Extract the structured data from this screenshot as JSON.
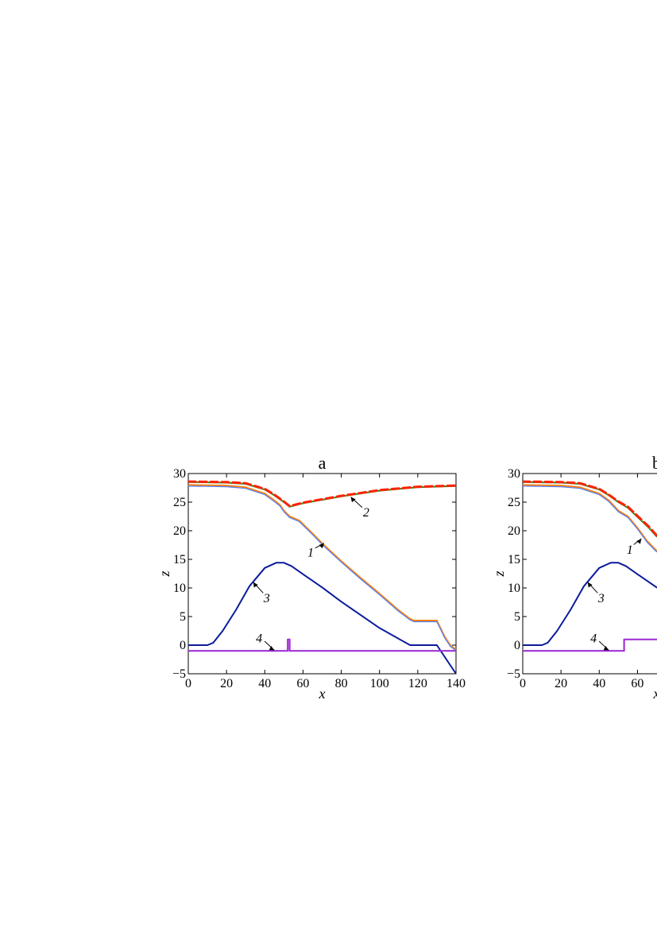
{
  "chart_data": [
    {
      "type": "line",
      "title": "a",
      "xlabel": "x",
      "ylabel": "z",
      "xlim": [
        0,
        140
      ],
      "ylim": [
        -5,
        30
      ],
      "xticks": [
        0,
        20,
        40,
        60,
        80,
        100,
        120,
        140
      ],
      "yticks": [
        -5,
        0,
        5,
        10,
        15,
        20,
        25,
        30
      ],
      "grid": false,
      "colors": {
        "orange": "#ff7f0e",
        "blue_thin": "#4f7fff",
        "green": "#2e8b22",
        "red": "#ff2200",
        "navy": "#0b1b9c",
        "purple": "#a033d6"
      },
      "series": [
        {
          "style": "solid",
          "color": "#2e8b22",
          "x": [
            0,
            20,
            30,
            40,
            45,
            50,
            53,
            60,
            80,
            100,
            120,
            140
          ],
          "y": [
            28.5,
            28.4,
            28.2,
            27.2,
            26.2,
            25.0,
            24.2,
            24.8,
            26.0,
            27.0,
            27.6,
            27.8
          ]
        },
        {
          "style": "dashed",
          "color": "#ff2200",
          "x": [
            0,
            20,
            30,
            40,
            45,
            50,
            53,
            60,
            80,
            100,
            120,
            140
          ],
          "y": [
            28.6,
            28.5,
            28.3,
            27.3,
            26.3,
            25.1,
            24.3,
            24.9,
            26.1,
            27.1,
            27.7,
            27.9
          ]
        },
        {
          "style": "solid",
          "color": "#ff7f0e",
          "x": [
            0,
            20,
            30,
            40,
            45,
            48,
            50,
            53,
            58,
            65,
            70,
            80,
            90,
            100,
            110,
            116,
            118,
            122,
            130,
            134,
            137,
            140
          ],
          "y": [
            28.0,
            27.9,
            27.6,
            26.5,
            25.3,
            24.5,
            23.5,
            22.5,
            21.8,
            19.5,
            17.8,
            14.7,
            11.8,
            9.0,
            6.1,
            4.6,
            4.3,
            4.3,
            4.3,
            1.5,
            0.0,
            -0.8
          ]
        },
        {
          "style": "thin",
          "color": "#4f7fff",
          "x": [
            0,
            20,
            30,
            40,
            45,
            48,
            50,
            53,
            58,
            65,
            70,
            80,
            90,
            100,
            110,
            116,
            118,
            122,
            130,
            134,
            137,
            140
          ],
          "y": [
            27.8,
            27.7,
            27.4,
            26.3,
            25.1,
            24.3,
            23.3,
            22.3,
            21.6,
            19.3,
            17.6,
            14.5,
            11.6,
            8.8,
            5.9,
            4.4,
            4.1,
            4.1,
            4.1,
            1.3,
            -0.2,
            -1.0
          ]
        },
        {
          "style": "solid",
          "color": "#0b1b9c",
          "x": [
            0,
            10,
            13,
            18,
            25,
            32,
            40,
            46,
            50,
            54,
            60,
            70,
            80,
            100,
            116,
            130,
            140
          ],
          "y": [
            0.0,
            0.0,
            0.4,
            2.5,
            6.2,
            10.3,
            13.5,
            14.4,
            14.4,
            13.8,
            12.4,
            10.1,
            7.6,
            3.0,
            0.0,
            0.0,
            -5.0
          ]
        },
        {
          "style": "solid",
          "color": "#a033d6",
          "x": [
            0,
            52,
            52,
            53,
            53,
            140
          ],
          "y": [
            -1.0,
            -1.0,
            1.0,
            1.0,
            -1.0,
            -1.0
          ]
        }
      ],
      "annotations": [
        {
          "text": "2",
          "x": 93,
          "y": 22.5,
          "target": [
            85,
            25.9
          ]
        },
        {
          "text": "1",
          "x": 64,
          "y": 15.5,
          "target": [
            71,
            17.8
          ]
        },
        {
          "text": "3",
          "x": 41,
          "y": 7.5,
          "target": [
            34,
            11.0
          ]
        },
        {
          "text": "4",
          "x": 37,
          "y": 0.5,
          "target": [
            45,
            -0.9
          ]
        }
      ]
    },
    {
      "type": "line",
      "title": "b",
      "xlabel": "x",
      "ylabel": "z",
      "xlim": [
        0,
        140
      ],
      "ylim": [
        -5,
        30
      ],
      "xticks": [
        0,
        20,
        40,
        60
      ],
      "yticks": [
        -5,
        0,
        5,
        10,
        15,
        20,
        25,
        30
      ],
      "grid": false,
      "series": [
        {
          "style": "solid",
          "color": "#2e8b22",
          "x": [
            0,
            20,
            30,
            40,
            45,
            50,
            55,
            60,
            66,
            70
          ],
          "y": [
            28.5,
            28.4,
            28.2,
            27.2,
            26.2,
            25.0,
            24.0,
            22.4,
            20.5,
            19.0
          ]
        },
        {
          "style": "dashed",
          "color": "#ff2200",
          "x": [
            0,
            20,
            30,
            40,
            45,
            50,
            55,
            60,
            66,
            70
          ],
          "y": [
            28.6,
            28.5,
            28.3,
            27.3,
            26.3,
            25.1,
            24.2,
            22.6,
            20.7,
            19.2
          ]
        },
        {
          "style": "solid",
          "color": "#ff7f0e",
          "x": [
            0,
            20,
            30,
            40,
            45,
            50,
            55,
            60,
            65,
            70
          ],
          "y": [
            28.0,
            27.9,
            27.6,
            26.5,
            25.3,
            23.5,
            22.5,
            20.5,
            18.2,
            16.5
          ]
        },
        {
          "style": "thin",
          "color": "#4f7fff",
          "x": [
            0,
            20,
            30,
            40,
            45,
            50,
            55,
            60,
            65,
            70
          ],
          "y": [
            27.8,
            27.7,
            27.4,
            26.3,
            25.1,
            23.3,
            22.3,
            20.3,
            18.0,
            16.3
          ]
        },
        {
          "style": "solid",
          "color": "#0b1b9c",
          "x": [
            0,
            10,
            13,
            18,
            25,
            32,
            40,
            46,
            50,
            54,
            60,
            70
          ],
          "y": [
            0.0,
            0.0,
            0.4,
            2.5,
            6.2,
            10.3,
            13.5,
            14.4,
            14.4,
            13.8,
            12.4,
            10.1
          ]
        },
        {
          "style": "solid",
          "color": "#a033d6",
          "x": [
            0,
            53,
            53,
            70
          ],
          "y": [
            -1.0,
            -1.0,
            1.0,
            1.0
          ]
        }
      ],
      "annotations": [
        {
          "text": "1",
          "x": 56,
          "y": 16.0,
          "target": [
            62,
            18.6
          ]
        },
        {
          "text": "3",
          "x": 41,
          "y": 7.5,
          "target": [
            34,
            11.0
          ]
        },
        {
          "text": "4",
          "x": 37,
          "y": 0.5,
          "target": [
            45,
            -0.9
          ]
        }
      ]
    }
  ]
}
